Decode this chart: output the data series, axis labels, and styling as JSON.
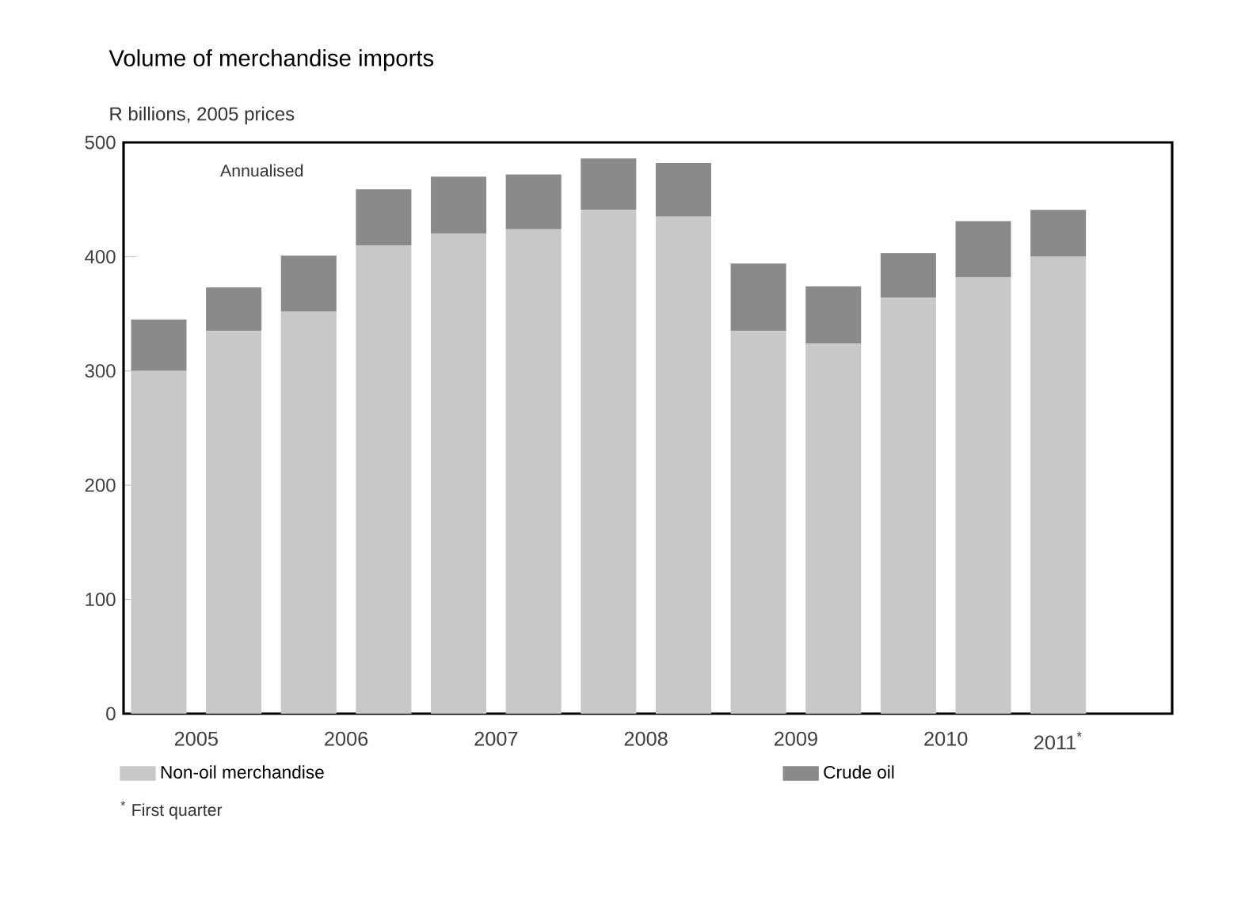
{
  "chart_data": {
    "type": "bar",
    "title": "Volume of merchandise imports",
    "subtitle": "R billions, 2005 prices",
    "categories": [
      "2005",
      null,
      "2006",
      null,
      "2007",
      null,
      "2008",
      null,
      "2009",
      null,
      "2010",
      null,
      "2011$^{*}$"
    ],
    "series": [
      {
        "name": "Non-oil merchandise",
        "color": "#c8c8c8",
        "values": [
          300,
          335,
          352,
          410,
          420,
          424,
          441,
          435,
          335,
          324,
          364,
          382,
          400
        ]
      },
      {
        "name": "Crude oil",
        "color": "#8a8a8a",
        "values": [
          45,
          38,
          49,
          49,
          50,
          48,
          45,
          47,
          59,
          50,
          39,
          49,
          41
        ]
      }
    ],
    "stacked": true,
    "ylim": [
      0,
      500
    ],
    "yticks": [
      0,
      100,
      200,
      300,
      400,
      500
    ],
    "grid": false,
    "legend": "bottom",
    "annotations": [
      "Annualised",
      "$^{*}$ First quarter"
    ]
  }
}
